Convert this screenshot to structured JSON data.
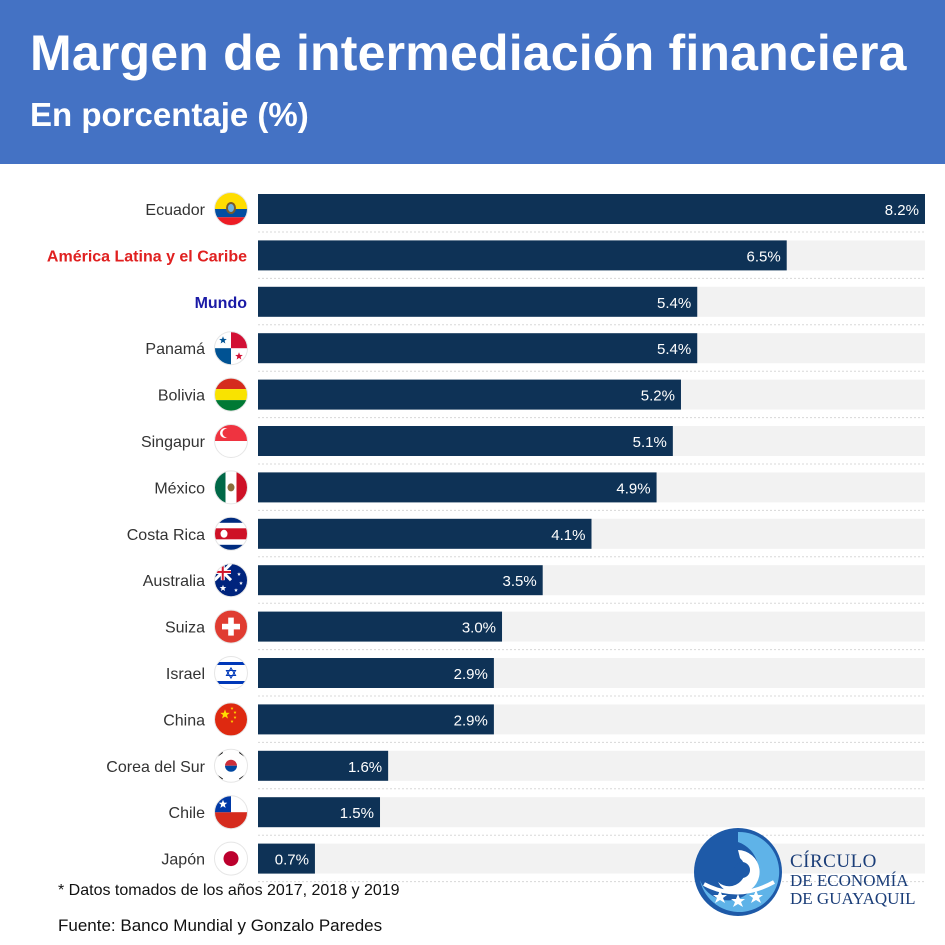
{
  "header": {
    "title": "Margen de intermediación financiera",
    "subtitle": "En porcentaje (%)"
  },
  "chart_data": {
    "type": "bar",
    "orientation": "horizontal",
    "title": "Margen de intermediación financiera",
    "subtitle": "En porcentaje (%)",
    "xlim": [
      0,
      8.2
    ],
    "grid": false,
    "categories": [
      "Ecuador",
      "América Latina y el Caribe",
      "Mundo",
      "Panamá",
      "Bolivia",
      "Singapur",
      "México",
      "Costa Rica",
      "Australia",
      "Suiza",
      "Israel",
      "China",
      "Corea del Sur",
      "Chile",
      "Japón"
    ],
    "values": [
      8.2,
      6.5,
      5.4,
      5.4,
      5.2,
      5.1,
      4.9,
      4.1,
      3.5,
      3.0,
      2.9,
      2.9,
      1.6,
      1.5,
      0.7
    ],
    "value_labels": [
      "8.2%",
      "6.5%",
      "5.4%",
      "5.4%",
      "5.2%",
      "5.1%",
      "4.9%",
      "4.1%",
      "3.5%",
      "3.0%",
      "2.9%",
      "2.9%",
      "1.6%",
      "1.5%",
      "0.7%"
    ],
    "flag_icons": [
      "ecuador-flag-icon",
      null,
      null,
      "panama-flag-icon",
      "bolivia-flag-icon",
      "singapore-flag-icon",
      "mexico-flag-icon",
      "costa-rica-flag-icon",
      "australia-flag-icon",
      "switzerland-flag-icon",
      "israel-flag-icon",
      "china-flag-icon",
      "south-korea-flag-icon",
      "chile-flag-icon",
      "japan-flag-icon"
    ],
    "label_colors": [
      "#333333",
      "#e02020",
      "#1a1aa6",
      "#333333",
      "#333333",
      "#333333",
      "#333333",
      "#333333",
      "#333333",
      "#333333",
      "#333333",
      "#333333",
      "#333333",
      "#333333",
      "#333333"
    ],
    "bold_labels": [
      false,
      true,
      true,
      false,
      false,
      false,
      false,
      false,
      false,
      false,
      false,
      false,
      false,
      false,
      false
    ],
    "colors": {
      "bar": "#0e3256",
      "track": "#f2f2f2",
      "header": "#4472c4",
      "value_text": "#ffffff"
    }
  },
  "footnote": "* Datos tomados de los años 2017, 2018 y 2019",
  "source": "Fuente: Banco Mundial y Gonzalo Paredes",
  "logo": {
    "line1": "CÍRCULO",
    "line2": "DE ECONOMÍA",
    "line3": "DE GUAYAQUIL",
    "icon": "circulo-logo-swirl-icon"
  }
}
